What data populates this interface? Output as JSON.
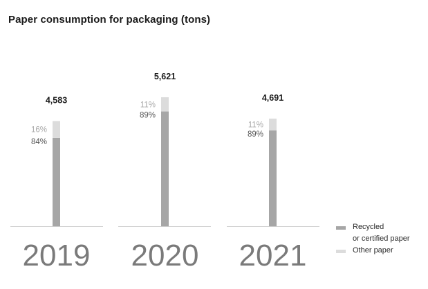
{
  "chart_data": {
    "type": "bar",
    "stacked": true,
    "title": "Paper consumption for packaging (tons)",
    "categories": [
      "2019",
      "2020",
      "2021"
    ],
    "totals": [
      4583,
      5621,
      4691
    ],
    "total_labels": [
      "4,583",
      "5,621",
      "4,691"
    ],
    "series": [
      {
        "name": "Recycled or certified paper",
        "legend_lines": [
          "Recycled",
          "or certified paper"
        ],
        "percent": [
          84,
          89,
          89
        ],
        "percent_labels": [
          "84%",
          "89%",
          "89%"
        ],
        "color": "#a6a6a6"
      },
      {
        "name": "Other paper",
        "legend_lines": [
          "Other paper"
        ],
        "percent": [
          16,
          11,
          11
        ],
        "percent_labels": [
          "16%",
          "11%",
          "11%"
        ],
        "color": "#dcdcdc"
      }
    ],
    "ylim": [
      0,
      6000
    ],
    "grid": false,
    "legend_position": "bottom-right"
  }
}
